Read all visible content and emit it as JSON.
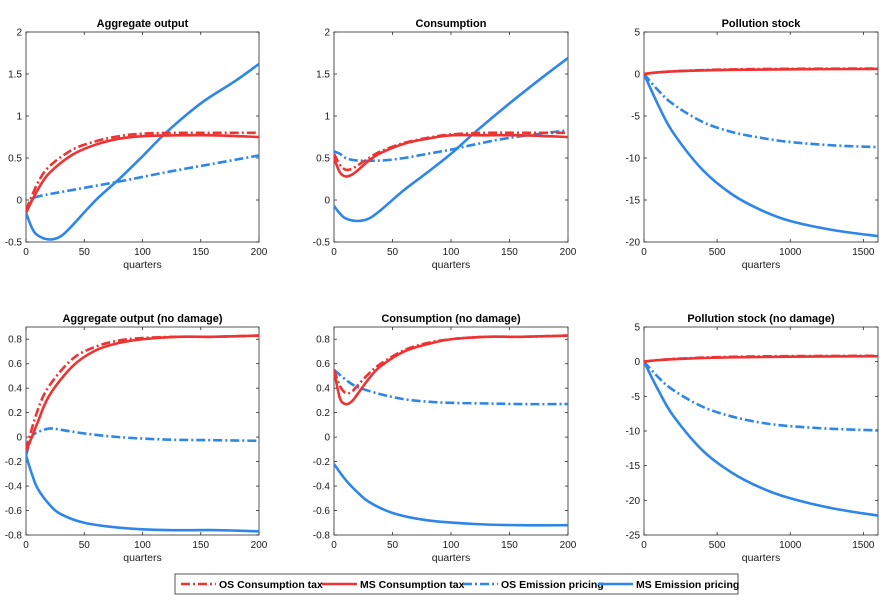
{
  "colors": {
    "red": "#ee3333",
    "blue": "#2e86e8"
  },
  "legend": [
    {
      "label": "OS Consumption tax",
      "color": "#ee3333",
      "dash": "dashdot"
    },
    {
      "label": "MS Consumption tax",
      "color": "#ee3333",
      "dash": "solid"
    },
    {
      "label": "OS Emission pricing",
      "color": "#2e86e8",
      "dash": "dashdot"
    },
    {
      "label": "MS Emission pricing",
      "color": "#2e86e8",
      "dash": "solid"
    }
  ],
  "chart_data": [
    {
      "type": "line",
      "title": "Aggregate output",
      "xlabel": "quarters",
      "xlim": [
        0,
        200
      ],
      "ylim": [
        -0.5,
        2
      ],
      "xticks": [
        0,
        50,
        100,
        150,
        200
      ],
      "yticks": [
        -0.5,
        0,
        0.5,
        1,
        1.5,
        2
      ],
      "series": [
        {
          "name": "OS Consumption tax",
          "x": [
            0,
            10,
            20,
            40,
            60,
            80,
            100,
            130,
            160,
            200
          ],
          "y": [
            -0.12,
            0.2,
            0.4,
            0.6,
            0.7,
            0.76,
            0.79,
            0.8,
            0.8,
            0.8
          ]
        },
        {
          "name": "MS Consumption tax",
          "x": [
            0,
            10,
            20,
            40,
            60,
            80,
            100,
            130,
            160,
            200
          ],
          "y": [
            -0.15,
            0.12,
            0.32,
            0.54,
            0.66,
            0.73,
            0.76,
            0.77,
            0.77,
            0.75
          ]
        },
        {
          "name": "OS Emission pricing",
          "x": [
            0,
            5,
            10,
            20,
            40,
            80,
            120,
            160,
            200
          ],
          "y": [
            -0.15,
            0.0,
            0.04,
            0.07,
            0.12,
            0.22,
            0.33,
            0.43,
            0.53
          ]
        },
        {
          "name": "MS Emission pricing",
          "x": [
            0,
            5,
            10,
            20,
            30,
            40,
            60,
            80,
            100,
            120,
            150,
            180,
            200
          ],
          "y": [
            -0.15,
            -0.33,
            -0.42,
            -0.47,
            -0.43,
            -0.3,
            0.0,
            0.25,
            0.52,
            0.8,
            1.15,
            1.42,
            1.62
          ]
        }
      ]
    },
    {
      "type": "line",
      "title": "Consumption",
      "xlabel": "quarters",
      "xlim": [
        0,
        200
      ],
      "ylim": [
        -0.5,
        2
      ],
      "xticks": [
        0,
        50,
        100,
        150,
        200
      ],
      "yticks": [
        -0.5,
        0,
        0.5,
        1,
        1.5,
        2
      ],
      "series": [
        {
          "name": "OS Consumption tax",
          "x": [
            0,
            5,
            10,
            15,
            20,
            30,
            40,
            60,
            80,
            100,
            130,
            160,
            200
          ],
          "y": [
            0.55,
            0.42,
            0.36,
            0.37,
            0.41,
            0.5,
            0.58,
            0.68,
            0.74,
            0.78,
            0.8,
            0.8,
            0.8
          ]
        },
        {
          "name": "MS Consumption tax",
          "x": [
            0,
            5,
            10,
            15,
            20,
            30,
            40,
            60,
            80,
            100,
            130,
            160,
            200
          ],
          "y": [
            0.5,
            0.33,
            0.28,
            0.3,
            0.35,
            0.47,
            0.56,
            0.67,
            0.73,
            0.77,
            0.77,
            0.77,
            0.75
          ]
        },
        {
          "name": "OS Emission pricing",
          "x": [
            0,
            5,
            10,
            20,
            40,
            60,
            80,
            100,
            120,
            150,
            200
          ],
          "y": [
            0.58,
            0.55,
            0.5,
            0.47,
            0.47,
            0.5,
            0.55,
            0.6,
            0.66,
            0.74,
            0.83
          ]
        },
        {
          "name": "MS Emission pricing",
          "x": [
            0,
            5,
            10,
            20,
            30,
            40,
            60,
            80,
            100,
            120,
            150,
            180,
            200
          ],
          "y": [
            -0.07,
            -0.16,
            -0.22,
            -0.25,
            -0.22,
            -0.12,
            0.12,
            0.33,
            0.55,
            0.8,
            1.15,
            1.48,
            1.69
          ]
        }
      ]
    },
    {
      "type": "line",
      "title": "Pollution stock",
      "xlabel": "quarters",
      "xlim": [
        0,
        1600
      ],
      "ylim": [
        -20,
        5
      ],
      "xticks": [
        0,
        500,
        1000,
        1500
      ],
      "yticks": [
        -20,
        -15,
        -10,
        -5,
        0,
        5
      ],
      "series": [
        {
          "name": "OS Consumption tax",
          "x": [
            0,
            100,
            300,
            600,
            1000,
            1600
          ],
          "y": [
            0,
            0.2,
            0.4,
            0.55,
            0.62,
            0.65
          ]
        },
        {
          "name": "MS Consumption tax",
          "x": [
            0,
            100,
            300,
            600,
            1000,
            1600
          ],
          "y": [
            0,
            0.2,
            0.38,
            0.5,
            0.56,
            0.6
          ]
        },
        {
          "name": "OS Emission pricing",
          "x": [
            0,
            100,
            200,
            400,
            600,
            800,
            1000,
            1300,
            1600
          ],
          "y": [
            0,
            -2.0,
            -3.6,
            -5.7,
            -6.9,
            -7.6,
            -8.1,
            -8.5,
            -8.7
          ]
        },
        {
          "name": "MS Emission pricing",
          "x": [
            0,
            100,
            200,
            400,
            600,
            800,
            1000,
            1300,
            1600
          ],
          "y": [
            0,
            -3.8,
            -7.0,
            -11.4,
            -14.3,
            -16.2,
            -17.5,
            -18.6,
            -19.3
          ]
        }
      ]
    },
    {
      "type": "line",
      "title": "Aggregate output (no damage)",
      "xlabel": "quarters",
      "xlim": [
        0,
        200
      ],
      "ylim": [
        -0.8,
        0.9
      ],
      "xticks": [
        0,
        50,
        100,
        150,
        200
      ],
      "yticks": [
        -0.8,
        -0.6,
        -0.4,
        -0.2,
        0,
        0.2,
        0.4,
        0.6,
        0.8
      ],
      "series": [
        {
          "name": "OS Consumption tax",
          "x": [
            0,
            10,
            20,
            40,
            60,
            80,
            100,
            130,
            160,
            200
          ],
          "y": [
            -0.1,
            0.22,
            0.42,
            0.64,
            0.74,
            0.79,
            0.81,
            0.82,
            0.82,
            0.83
          ]
        },
        {
          "name": "MS Consumption tax",
          "x": [
            0,
            10,
            20,
            40,
            60,
            80,
            100,
            130,
            160,
            200
          ],
          "y": [
            -0.12,
            0.12,
            0.34,
            0.58,
            0.71,
            0.77,
            0.8,
            0.82,
            0.82,
            0.83
          ]
        },
        {
          "name": "OS Emission pricing",
          "x": [
            0,
            5,
            10,
            20,
            30,
            50,
            80,
            120,
            160,
            200
          ],
          "y": [
            -0.15,
            0.0,
            0.04,
            0.07,
            0.06,
            0.03,
            0.0,
            -0.02,
            -0.025,
            -0.03
          ]
        },
        {
          "name": "MS Emission pricing",
          "x": [
            0,
            5,
            10,
            20,
            30,
            50,
            80,
            120,
            160,
            200
          ],
          "y": [
            -0.15,
            -0.3,
            -0.42,
            -0.55,
            -0.63,
            -0.7,
            -0.74,
            -0.76,
            -0.76,
            -0.77
          ]
        }
      ]
    },
    {
      "type": "line",
      "title": "Consumption (no damage)",
      "xlabel": "quarters",
      "xlim": [
        0,
        200
      ],
      "ylim": [
        -0.8,
        0.9
      ],
      "xticks": [
        0,
        50,
        100,
        150,
        200
      ],
      "yticks": [
        -0.8,
        -0.6,
        -0.4,
        -0.2,
        0,
        0.2,
        0.4,
        0.6,
        0.8
      ],
      "series": [
        {
          "name": "OS Consumption tax",
          "x": [
            0,
            5,
            10,
            15,
            20,
            30,
            40,
            60,
            80,
            100,
            130,
            160,
            200
          ],
          "y": [
            0.55,
            0.42,
            0.36,
            0.37,
            0.42,
            0.52,
            0.6,
            0.71,
            0.77,
            0.8,
            0.82,
            0.82,
            0.83
          ]
        },
        {
          "name": "MS Consumption tax",
          "x": [
            0,
            5,
            10,
            15,
            20,
            30,
            40,
            60,
            80,
            100,
            130,
            160,
            200
          ],
          "y": [
            0.55,
            0.32,
            0.27,
            0.29,
            0.35,
            0.48,
            0.58,
            0.7,
            0.76,
            0.8,
            0.82,
            0.82,
            0.83
          ]
        },
        {
          "name": "OS Emission pricing",
          "x": [
            0,
            10,
            20,
            40,
            60,
            80,
            100,
            130,
            160,
            200
          ],
          "y": [
            0.55,
            0.47,
            0.41,
            0.35,
            0.31,
            0.29,
            0.28,
            0.275,
            0.27,
            0.27
          ]
        },
        {
          "name": "MS Emission pricing",
          "x": [
            0,
            10,
            20,
            30,
            50,
            80,
            120,
            160,
            200
          ],
          "y": [
            -0.22,
            -0.35,
            -0.45,
            -0.53,
            -0.62,
            -0.68,
            -0.71,
            -0.72,
            -0.72
          ]
        }
      ]
    },
    {
      "type": "line",
      "title": "Pollution stock (no damage)",
      "xlabel": "quarters",
      "xlim": [
        0,
        1600
      ],
      "ylim": [
        -25,
        5
      ],
      "xticks": [
        0,
        500,
        1000,
        1500
      ],
      "yticks": [
        -25,
        -20,
        -15,
        -10,
        -5,
        0,
        5
      ],
      "series": [
        {
          "name": "OS Consumption tax",
          "x": [
            0,
            100,
            300,
            600,
            1000,
            1600
          ],
          "y": [
            0,
            0.25,
            0.5,
            0.7,
            0.8,
            0.85
          ]
        },
        {
          "name": "MS Consumption tax",
          "x": [
            0,
            100,
            300,
            600,
            1000,
            1600
          ],
          "y": [
            0,
            0.22,
            0.45,
            0.62,
            0.72,
            0.78
          ]
        },
        {
          "name": "OS Emission pricing",
          "x": [
            0,
            100,
            200,
            400,
            600,
            800,
            1000,
            1300,
            1600
          ],
          "y": [
            0,
            -2.3,
            -4.1,
            -6.5,
            -7.9,
            -8.8,
            -9.3,
            -9.7,
            -9.9
          ]
        },
        {
          "name": "MS Emission pricing",
          "x": [
            0,
            100,
            200,
            400,
            600,
            800,
            1000,
            1300,
            1600
          ],
          "y": [
            0,
            -4.2,
            -7.8,
            -12.8,
            -16.0,
            -18.2,
            -19.7,
            -21.2,
            -22.2
          ]
        }
      ]
    }
  ]
}
